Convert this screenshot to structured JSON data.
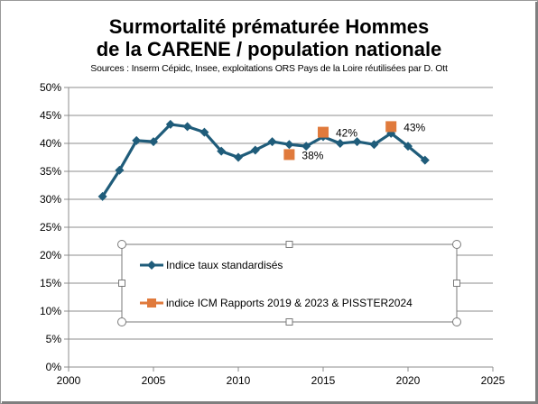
{
  "chart_data": {
    "type": "line",
    "title": "Surmortalité prématurée Hommes de la CARENE / population nationale",
    "title_lines": [
      "Surmortalité prématurée Hommes",
      "de la CARENE / population nationale"
    ],
    "subtitle": "Sources : Inserm Cépidc, Insee, exploitations ORS Pays de la Loire réutilisées par D. Ott",
    "xlim": [
      2000,
      2025
    ],
    "ylim": [
      0,
      50
    ],
    "x_ticks": [
      2000,
      2005,
      2010,
      2015,
      2020,
      2025
    ],
    "y_ticks": [
      0,
      5,
      10,
      15,
      20,
      25,
      30,
      35,
      40,
      45,
      50
    ],
    "y_tick_labels": [
      "0%",
      "5%",
      "10%",
      "15%",
      "20%",
      "25%",
      "30%",
      "35%",
      "40%",
      "45%",
      "50%"
    ],
    "grid": true,
    "legend_position": "lower-center",
    "series": [
      {
        "name": "Indice taux standardisés",
        "color": "#1f5c7a",
        "marker": "diamond",
        "points": [
          {
            "x": 2002,
            "y": 30.5
          },
          {
            "x": 2003,
            "y": 35.2
          },
          {
            "x": 2004,
            "y": 40.5
          },
          {
            "x": 2005,
            "y": 40.3
          },
          {
            "x": 2006,
            "y": 43.4
          },
          {
            "x": 2007,
            "y": 43.0
          },
          {
            "x": 2008,
            "y": 42.0
          },
          {
            "x": 2009,
            "y": 38.6
          },
          {
            "x": 2010,
            "y": 37.5
          },
          {
            "x": 2011,
            "y": 38.8
          },
          {
            "x": 2012,
            "y": 40.3
          },
          {
            "x": 2013,
            "y": 39.8
          },
          {
            "x": 2014,
            "y": 39.5
          },
          {
            "x": 2015,
            "y": 41.2
          },
          {
            "x": 2016,
            "y": 40.0
          },
          {
            "x": 2017,
            "y": 40.3
          },
          {
            "x": 2018,
            "y": 39.8
          },
          {
            "x": 2019,
            "y": 41.8
          },
          {
            "x": 2020,
            "y": 39.5
          },
          {
            "x": 2021,
            "y": 37.0
          }
        ]
      },
      {
        "name": "indice ICM Rapports 2019 & 2023 & PISSTER2024",
        "color": "#e07a3c",
        "marker": "square",
        "points": [
          {
            "x": 2013,
            "y": 38.0,
            "label": "38%"
          },
          {
            "x": 2015,
            "y": 42.0,
            "label": "42%"
          },
          {
            "x": 2019,
            "y": 43.0,
            "label": "43%"
          }
        ]
      }
    ]
  }
}
